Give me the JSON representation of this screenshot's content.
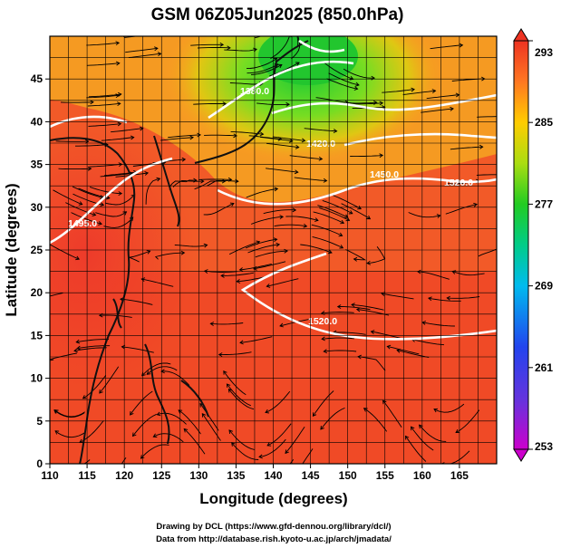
{
  "title": "GSM 06Z05Jun2025 (850.0hPa)",
  "x_axis": {
    "label": "Longitude (degrees)",
    "range": [
      110,
      170
    ],
    "ticks": [
      110,
      115,
      120,
      125,
      130,
      135,
      140,
      145,
      150,
      155,
      160,
      165
    ]
  },
  "y_axis": {
    "label": "Latitude  (degrees)",
    "range": [
      0,
      50
    ],
    "ticks": [
      0,
      5,
      10,
      15,
      20,
      25,
      30,
      35,
      40,
      45
    ]
  },
  "colorbar": {
    "ticks": [
      293,
      285,
      277,
      269,
      261,
      253
    ],
    "range": [
      253,
      293
    ],
    "colors": [
      "#cc00cc",
      "#4455ee",
      "#00aaee",
      "#22cc22",
      "#88dd22",
      "#ffcc00",
      "#ff6622",
      "#ee3322"
    ]
  },
  "contour_labels": [
    "1450.0",
    "1520.0",
    "1495.0",
    "1520.0",
    "1380.0",
    "1420.0"
  ],
  "credits": {
    "line1": "Drawing by DCL (https://www.gfd-dennou.org/library/dcl/)",
    "line2": "Data from http://database.rish.kyoto-u.ac.jp/arch/jmadata/"
  }
}
